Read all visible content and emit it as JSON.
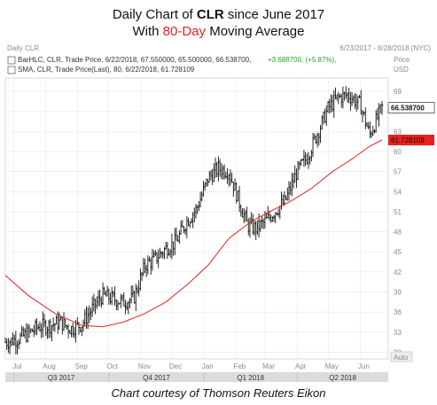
{
  "header": {
    "line1_prefix": "Daily Chart of ",
    "line1_ticker": "CLR",
    "line1_suffix": " since June 2017",
    "line2_prefix": "With ",
    "line2_accent": "80-Day",
    "line2_suffix": " Moving Average"
  },
  "caption": "Chart courtesy of Thomson Reuters Eikon",
  "panel": {
    "name": "Daily CLR",
    "date_range": "6/23/2017 - 6/28/2018 (NYC)",
    "legend_bar": "BarHLC, CLR, Trade Price, 6/22/2018, 67.550000, 65.500000, 66.538700,",
    "legend_bar_change": "+3.688700, (+5.87%),",
    "legend_sma": "SMA, CLR, Trade Price(Last),  80, 6/22/2018, 61.728109",
    "price_unit": "Price",
    "currency": "USD",
    "last_price_label": "66.538700",
    "sma_label": "61.728109",
    "auto_label": "Auto"
  },
  "colors": {
    "accent": "#e8211d",
    "bars": "#111111",
    "sma": "#e8211d",
    "grid": "#e4e4e4",
    "quarter_band": "#dcdcdc"
  },
  "chart_data": {
    "type": "line",
    "title": "Daily Chart of CLR since June 2017",
    "subtitle": "With 80-Day Moving Average",
    "y_ticks": [
      30,
      33,
      36,
      39,
      42,
      45,
      48,
      51,
      54,
      57,
      60,
      63,
      66,
      69
    ],
    "ylim": [
      29,
      71
    ],
    "x_months": [
      "Jul",
      "Aug",
      "Sep",
      "Oct",
      "Nov",
      "Dec",
      "Jan",
      "Feb",
      "Mar",
      "Apr",
      "May",
      "Jun"
    ],
    "x_quarters": [
      "Q3 2017",
      "Q4 2017",
      "Q1 2018",
      "Q2 2018"
    ],
    "xlim": [
      "2017-06-23",
      "2018-06-28"
    ],
    "series": [
      {
        "name": "BarHLC, CLR, Trade Price",
        "style": "hlc-bars",
        "dates": [
          "2017-06-23",
          "2017-07-05",
          "2017-07-15",
          "2017-07-25",
          "2017-08-05",
          "2017-08-15",
          "2017-08-25",
          "2017-09-05",
          "2017-09-15",
          "2017-09-25",
          "2017-10-05",
          "2017-10-15",
          "2017-10-25",
          "2017-11-05",
          "2017-11-15",
          "2017-11-25",
          "2017-12-05",
          "2017-12-15",
          "2017-12-25",
          "2018-01-05",
          "2018-01-15",
          "2018-01-25",
          "2018-02-05",
          "2018-02-12",
          "2018-02-20",
          "2018-03-01",
          "2018-03-10",
          "2018-03-20",
          "2018-04-01",
          "2018-04-10",
          "2018-04-20",
          "2018-05-01",
          "2018-05-10",
          "2018-05-20",
          "2018-06-01",
          "2018-06-10",
          "2018-06-22"
        ],
        "close": [
          31.5,
          32.0,
          32.8,
          33.8,
          34.0,
          34.5,
          33.5,
          34.2,
          36.5,
          38.5,
          38.0,
          37.5,
          38.0,
          43.0,
          44.0,
          45.5,
          46.5,
          49.5,
          51.5,
          56.0,
          57.5,
          57.0,
          52.0,
          49.0,
          48.5,
          49.5,
          51.0,
          52.5,
          57.0,
          59.0,
          62.5,
          66.5,
          68.0,
          68.5,
          67.0,
          62.5,
          66.54
        ]
      },
      {
        "name": "SMA, CLR, Trade Price(Last), 80",
        "style": "line",
        "dates": [
          "2017-06-23",
          "2017-07-15",
          "2017-08-10",
          "2017-09-05",
          "2017-09-25",
          "2017-10-15",
          "2017-11-05",
          "2017-11-25",
          "2017-12-15",
          "2018-01-05",
          "2018-01-25",
          "2018-02-15",
          "2018-03-05",
          "2018-03-25",
          "2018-04-15",
          "2018-05-05",
          "2018-05-25",
          "2018-06-10",
          "2018-06-22"
        ],
        "values": [
          41.5,
          38.5,
          35.8,
          34.0,
          33.8,
          34.5,
          35.8,
          37.5,
          40.0,
          43.0,
          47.0,
          49.5,
          51.0,
          52.5,
          54.5,
          57.0,
          59.0,
          60.8,
          61.73
        ]
      }
    ],
    "last_price": 66.5387,
    "last_sma": 61.728109
  }
}
